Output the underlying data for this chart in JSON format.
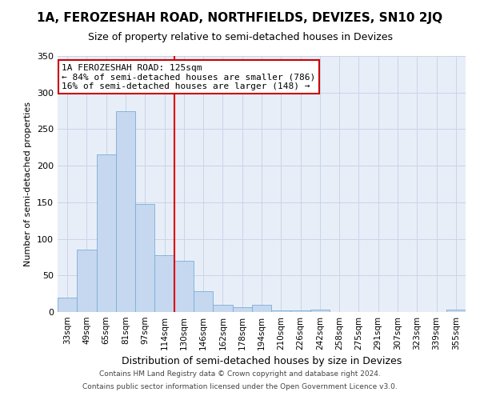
{
  "title": "1A, FEROZESHAH ROAD, NORTHFIELDS, DEVIZES, SN10 2JQ",
  "subtitle": "Size of property relative to semi-detached houses in Devizes",
  "xlabel": "Distribution of semi-detached houses by size in Devizes",
  "ylabel": "Number of semi-detached properties",
  "footer1": "Contains HM Land Registry data © Crown copyright and database right 2024.",
  "footer2": "Contains public sector information licensed under the Open Government Licence v3.0.",
  "annotation_title": "1A FEROZESHAH ROAD: 125sqm",
  "annotation_line1": "← 84% of semi-detached houses are smaller (786)",
  "annotation_line2": "16% of semi-detached houses are larger (148) →",
  "categories": [
    "33sqm",
    "49sqm",
    "65sqm",
    "81sqm",
    "97sqm",
    "114sqm",
    "130sqm",
    "146sqm",
    "162sqm",
    "178sqm",
    "194sqm",
    "210sqm",
    "226sqm",
    "242sqm",
    "258sqm",
    "275sqm",
    "291sqm",
    "307sqm",
    "323sqm",
    "339sqm",
    "355sqm"
  ],
  "values": [
    20,
    85,
    215,
    275,
    148,
    78,
    70,
    28,
    10,
    7,
    10,
    2,
    2,
    3,
    0,
    0,
    0,
    0,
    0,
    0,
    3
  ],
  "bar_color": "#c5d8f0",
  "bar_edge_color": "#7badd4",
  "vline_color": "#dd0000",
  "vline_x": 5.5,
  "grid_color": "#c8d4e8",
  "bg_color": "#e8eef8",
  "annotation_box_edge": "#cc0000",
  "ylim": [
    0,
    350
  ],
  "yticks": [
    0,
    50,
    100,
    150,
    200,
    250,
    300,
    350
  ],
  "title_fontsize": 11,
  "subtitle_fontsize": 9,
  "ylabel_fontsize": 8,
  "xlabel_fontsize": 9,
  "tick_fontsize": 8,
  "xtick_fontsize": 7.5,
  "footer_fontsize": 6.5
}
